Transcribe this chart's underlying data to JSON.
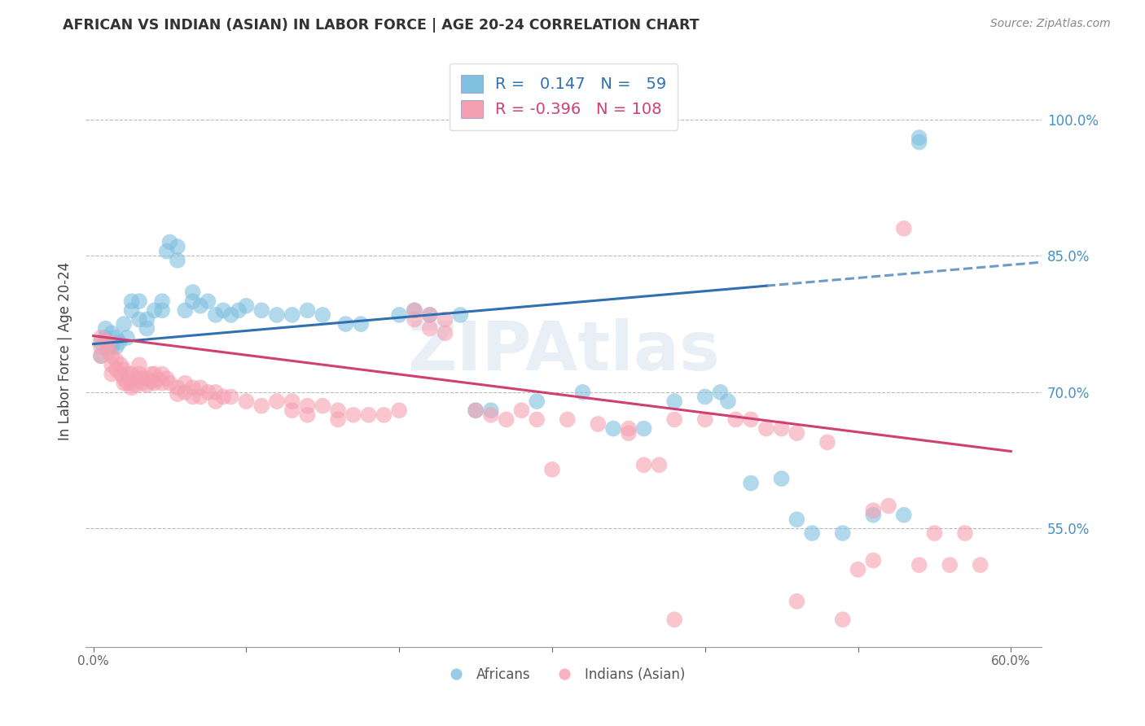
{
  "title": "AFRICAN VS INDIAN (ASIAN) IN LABOR FORCE | AGE 20-24 CORRELATION CHART",
  "source": "Source: ZipAtlas.com",
  "ylabel": "In Labor Force | Age 20-24",
  "ytick_labels": [
    "55.0%",
    "70.0%",
    "85.0%",
    "100.0%"
  ],
  "ytick_values": [
    0.55,
    0.7,
    0.85,
    1.0
  ],
  "xlim": [
    -0.005,
    0.62
  ],
  "ylim": [
    0.42,
    1.07
  ],
  "legend_R_african": "0.147",
  "legend_N_african": "59",
  "legend_R_indian": "-0.396",
  "legend_N_indian": "108",
  "watermark": "ZIPAtlas",
  "blue_color": "#7fbfdf",
  "pink_color": "#f5a0b0",
  "blue_line_color": "#3070b0",
  "pink_line_color": "#d04070",
  "blue_scatter": [
    [
      0.005,
      0.755
    ],
    [
      0.005,
      0.74
    ],
    [
      0.008,
      0.76
    ],
    [
      0.008,
      0.77
    ],
    [
      0.01,
      0.748
    ],
    [
      0.01,
      0.755
    ],
    [
      0.012,
      0.765
    ],
    [
      0.012,
      0.75
    ],
    [
      0.015,
      0.76
    ],
    [
      0.015,
      0.75
    ],
    [
      0.017,
      0.755
    ],
    [
      0.02,
      0.775
    ],
    [
      0.022,
      0.76
    ],
    [
      0.025,
      0.8
    ],
    [
      0.025,
      0.79
    ],
    [
      0.03,
      0.78
    ],
    [
      0.03,
      0.8
    ],
    [
      0.035,
      0.77
    ],
    [
      0.035,
      0.78
    ],
    [
      0.04,
      0.79
    ],
    [
      0.045,
      0.79
    ],
    [
      0.045,
      0.8
    ],
    [
      0.048,
      0.855
    ],
    [
      0.05,
      0.865
    ],
    [
      0.055,
      0.86
    ],
    [
      0.055,
      0.845
    ],
    [
      0.06,
      0.79
    ],
    [
      0.065,
      0.8
    ],
    [
      0.065,
      0.81
    ],
    [
      0.07,
      0.795
    ],
    [
      0.075,
      0.8
    ],
    [
      0.08,
      0.785
    ],
    [
      0.085,
      0.79
    ],
    [
      0.09,
      0.785
    ],
    [
      0.095,
      0.79
    ],
    [
      0.1,
      0.795
    ],
    [
      0.11,
      0.79
    ],
    [
      0.12,
      0.785
    ],
    [
      0.13,
      0.785
    ],
    [
      0.14,
      0.79
    ],
    [
      0.15,
      0.785
    ],
    [
      0.165,
      0.775
    ],
    [
      0.175,
      0.775
    ],
    [
      0.2,
      0.785
    ],
    [
      0.21,
      0.79
    ],
    [
      0.22,
      0.785
    ],
    [
      0.24,
      0.785
    ],
    [
      0.25,
      0.68
    ],
    [
      0.26,
      0.68
    ],
    [
      0.29,
      0.69
    ],
    [
      0.32,
      0.7
    ],
    [
      0.34,
      0.66
    ],
    [
      0.36,
      0.66
    ],
    [
      0.38,
      0.69
    ],
    [
      0.4,
      0.695
    ],
    [
      0.41,
      0.7
    ],
    [
      0.415,
      0.69
    ],
    [
      0.43,
      0.6
    ],
    [
      0.45,
      0.605
    ],
    [
      0.46,
      0.56
    ],
    [
      0.47,
      0.545
    ],
    [
      0.49,
      0.545
    ],
    [
      0.51,
      0.565
    ],
    [
      0.53,
      0.565
    ],
    [
      0.54,
      0.98
    ],
    [
      0.54,
      0.975
    ]
  ],
  "pink_scatter": [
    [
      0.005,
      0.76
    ],
    [
      0.005,
      0.75
    ],
    [
      0.005,
      0.74
    ],
    [
      0.008,
      0.755
    ],
    [
      0.01,
      0.745
    ],
    [
      0.01,
      0.755
    ],
    [
      0.012,
      0.74
    ],
    [
      0.012,
      0.73
    ],
    [
      0.012,
      0.72
    ],
    [
      0.015,
      0.735
    ],
    [
      0.015,
      0.725
    ],
    [
      0.018,
      0.73
    ],
    [
      0.018,
      0.72
    ],
    [
      0.02,
      0.725
    ],
    [
      0.02,
      0.715
    ],
    [
      0.02,
      0.71
    ],
    [
      0.022,
      0.72
    ],
    [
      0.022,
      0.71
    ],
    [
      0.025,
      0.72
    ],
    [
      0.025,
      0.71
    ],
    [
      0.025,
      0.705
    ],
    [
      0.028,
      0.715
    ],
    [
      0.028,
      0.708
    ],
    [
      0.03,
      0.73
    ],
    [
      0.03,
      0.72
    ],
    [
      0.032,
      0.715
    ],
    [
      0.032,
      0.71
    ],
    [
      0.035,
      0.715
    ],
    [
      0.035,
      0.708
    ],
    [
      0.038,
      0.72
    ],
    [
      0.038,
      0.712
    ],
    [
      0.04,
      0.72
    ],
    [
      0.04,
      0.71
    ],
    [
      0.042,
      0.715
    ],
    [
      0.045,
      0.72
    ],
    [
      0.045,
      0.71
    ],
    [
      0.048,
      0.715
    ],
    [
      0.05,
      0.71
    ],
    [
      0.055,
      0.705
    ],
    [
      0.055,
      0.698
    ],
    [
      0.06,
      0.71
    ],
    [
      0.06,
      0.7
    ],
    [
      0.065,
      0.705
    ],
    [
      0.065,
      0.695
    ],
    [
      0.07,
      0.705
    ],
    [
      0.07,
      0.695
    ],
    [
      0.075,
      0.7
    ],
    [
      0.08,
      0.7
    ],
    [
      0.08,
      0.69
    ],
    [
      0.085,
      0.695
    ],
    [
      0.09,
      0.695
    ],
    [
      0.1,
      0.69
    ],
    [
      0.11,
      0.685
    ],
    [
      0.12,
      0.69
    ],
    [
      0.13,
      0.69
    ],
    [
      0.13,
      0.68
    ],
    [
      0.14,
      0.685
    ],
    [
      0.14,
      0.675
    ],
    [
      0.15,
      0.685
    ],
    [
      0.16,
      0.68
    ],
    [
      0.16,
      0.67
    ],
    [
      0.17,
      0.675
    ],
    [
      0.18,
      0.675
    ],
    [
      0.19,
      0.675
    ],
    [
      0.2,
      0.68
    ],
    [
      0.21,
      0.79
    ],
    [
      0.21,
      0.78
    ],
    [
      0.22,
      0.785
    ],
    [
      0.22,
      0.77
    ],
    [
      0.23,
      0.78
    ],
    [
      0.23,
      0.765
    ],
    [
      0.25,
      0.68
    ],
    [
      0.26,
      0.675
    ],
    [
      0.27,
      0.67
    ],
    [
      0.28,
      0.68
    ],
    [
      0.29,
      0.67
    ],
    [
      0.31,
      0.67
    ],
    [
      0.33,
      0.665
    ],
    [
      0.35,
      0.66
    ],
    [
      0.35,
      0.655
    ],
    [
      0.36,
      0.62
    ],
    [
      0.37,
      0.62
    ],
    [
      0.38,
      0.67
    ],
    [
      0.4,
      0.67
    ],
    [
      0.42,
      0.67
    ],
    [
      0.43,
      0.67
    ],
    [
      0.44,
      0.66
    ],
    [
      0.45,
      0.66
    ],
    [
      0.46,
      0.655
    ],
    [
      0.48,
      0.645
    ],
    [
      0.5,
      0.505
    ],
    [
      0.51,
      0.515
    ],
    [
      0.51,
      0.57
    ],
    [
      0.52,
      0.575
    ],
    [
      0.54,
      0.51
    ],
    [
      0.56,
      0.51
    ],
    [
      0.58,
      0.51
    ],
    [
      0.3,
      0.615
    ],
    [
      0.38,
      0.45
    ],
    [
      0.46,
      0.47
    ],
    [
      0.49,
      0.45
    ],
    [
      0.53,
      0.88
    ],
    [
      0.55,
      0.545
    ],
    [
      0.57,
      0.545
    ]
  ],
  "african_line_solid": {
    "x0": 0.0,
    "y0": 0.753,
    "x1": 0.44,
    "y1": 0.817
  },
  "african_line_dashed": {
    "x0": 0.44,
    "y0": 0.817,
    "x1": 0.62,
    "y1": 0.843
  },
  "indian_line": {
    "x0": 0.0,
    "y0": 0.762,
    "x1": 0.6,
    "y1": 0.635
  }
}
